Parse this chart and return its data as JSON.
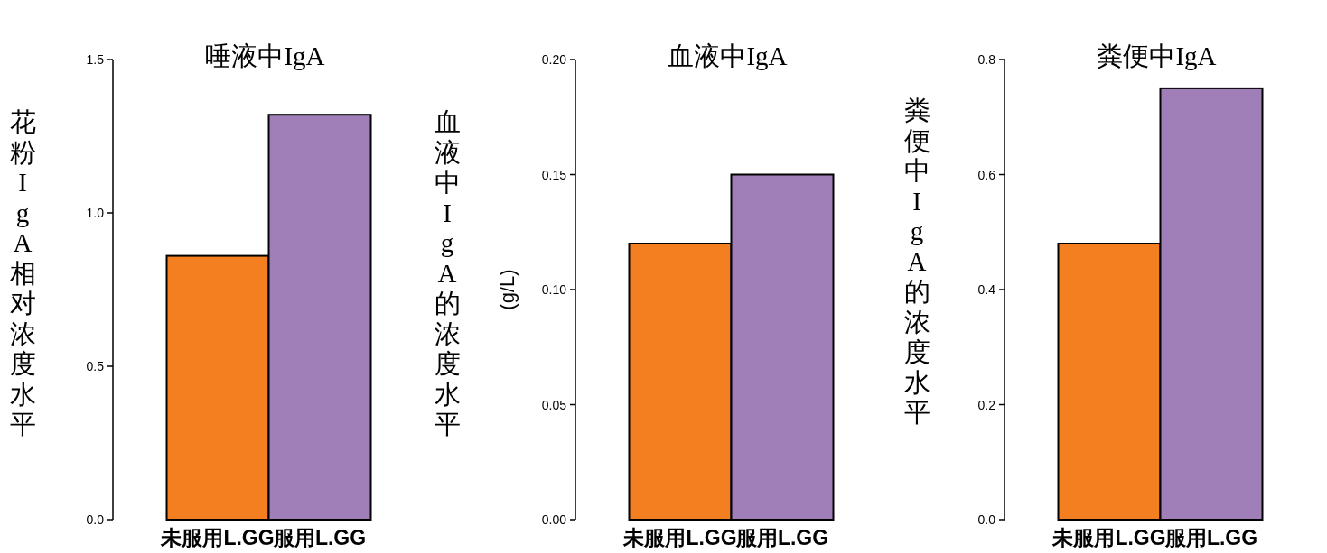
{
  "chart_data": [
    {
      "type": "bar",
      "title": "唾液中IgA",
      "ylabel": "花粉IgA相对浓度水平",
      "categories": [
        "未服用L.GG",
        "服用L.GG"
      ],
      "values": [
        0.86,
        1.32
      ],
      "colors": [
        "#f47f20",
        "#a07fb8"
      ],
      "ylim": [
        0,
        1.5
      ],
      "yticks": [
        {
          "value": 0,
          "label": "0.0"
        },
        {
          "value": 0.5,
          "label": "0.5"
        },
        {
          "value": 1,
          "label": "1.0"
        },
        {
          "value": 1.5,
          "label": "1.5"
        }
      ]
    },
    {
      "type": "bar",
      "title": "血液中IgA",
      "ylabel": "血液中IgA的浓度水平",
      "annotations": [
        "(g/L)"
      ],
      "categories": [
        "未服用L.GG",
        "服用L.GG"
      ],
      "values": [
        0.12,
        0.15
      ],
      "colors": [
        "#f47f20",
        "#a07fb8"
      ],
      "ylim": [
        0,
        0.2
      ],
      "yticks": [
        {
          "value": 0,
          "label": "0.00"
        },
        {
          "value": 0.05,
          "label": "0.05"
        },
        {
          "value": 0.1,
          "label": "0.10"
        },
        {
          "value": 0.15,
          "label": "0.15"
        },
        {
          "value": 0.2,
          "label": "0.20"
        }
      ]
    },
    {
      "type": "bar",
      "title": "粪便中IgA",
      "ylabel": "粪便中IgA的浓度水平",
      "categories": [
        "未服用L.GG",
        "服用L.GG"
      ],
      "values": [
        0.48,
        0.75
      ],
      "colors": [
        "#f47f20",
        "#a07fb8"
      ],
      "ylim": [
        0,
        0.8
      ],
      "yticks": [
        {
          "value": 0,
          "label": "0.0"
        },
        {
          "value": 0.2,
          "label": "0.2"
        },
        {
          "value": 0.4,
          "label": "0.4"
        },
        {
          "value": 0.6,
          "label": "0.6"
        },
        {
          "value": 0.8,
          "label": "0.8"
        }
      ]
    }
  ]
}
